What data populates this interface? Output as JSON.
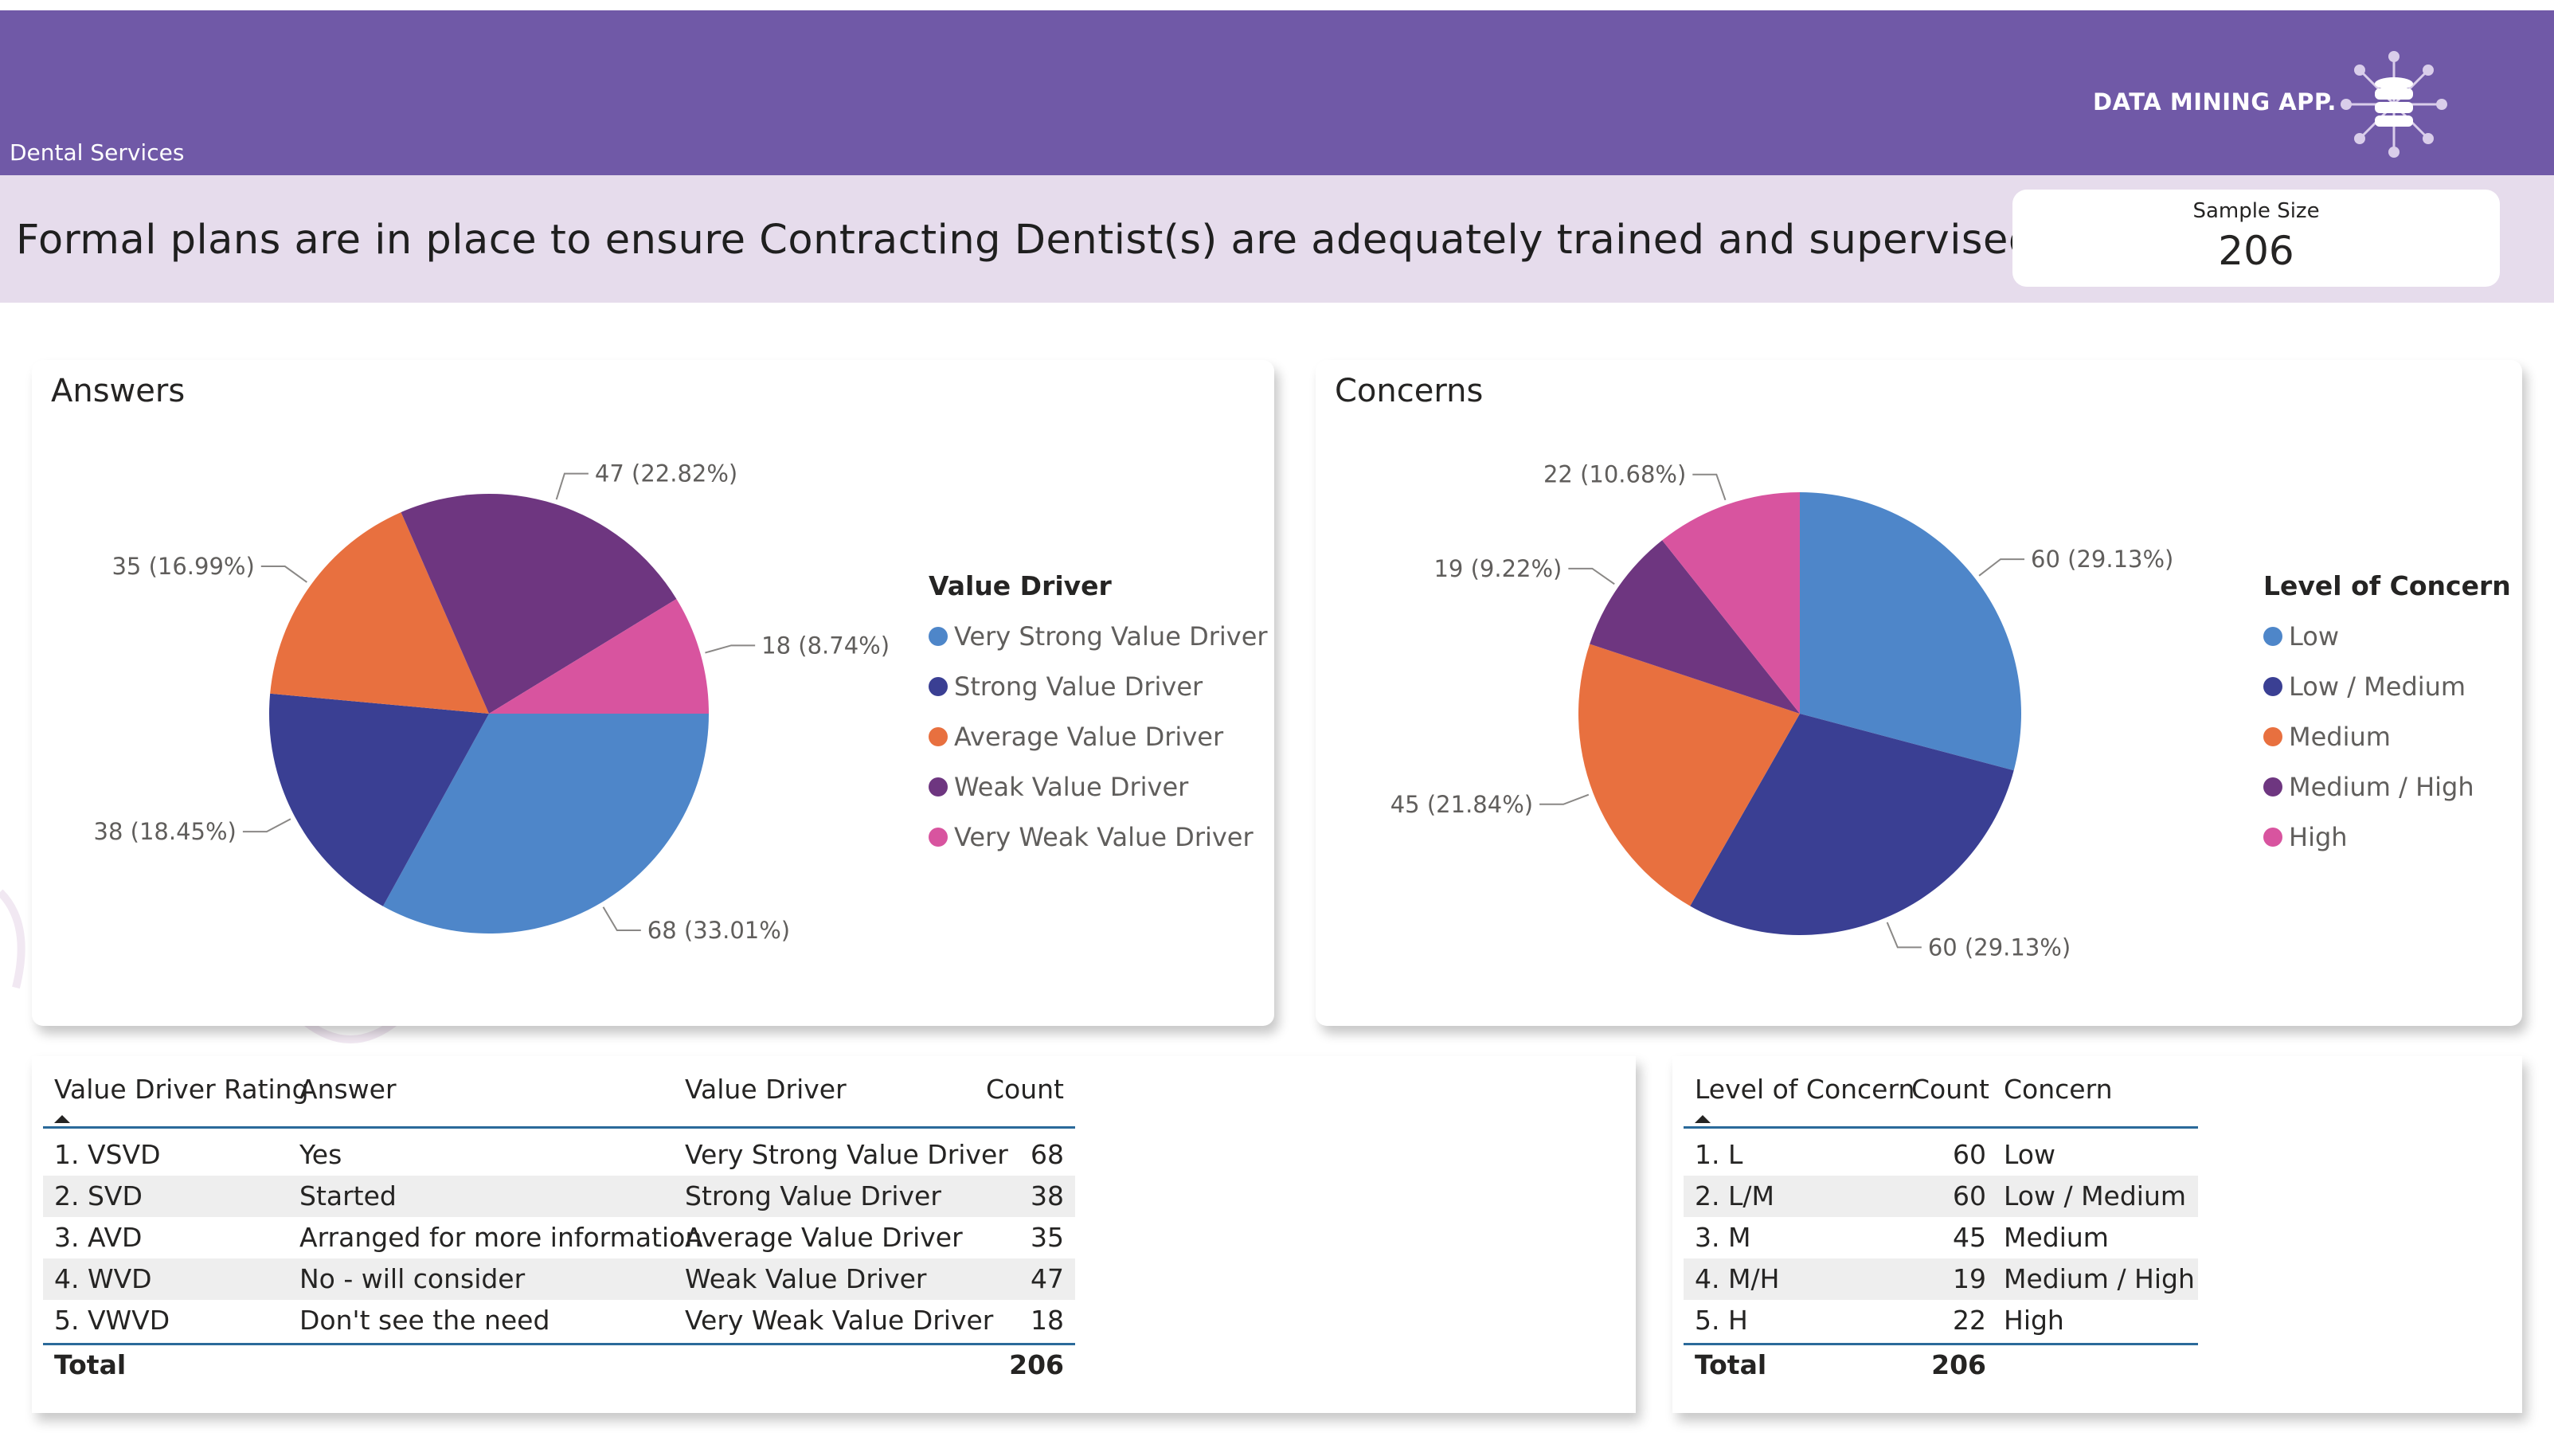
{
  "header": {
    "section": "Dental Services",
    "brand": "DATA MINING APP.",
    "question": "Formal plans are in place to ensure Contracting Dentist(s) are adequately trained and supervised/me...",
    "sample_label": "Sample Size",
    "sample_value": "206"
  },
  "colors": {
    "header": "#7059a7",
    "question_bar": "#e6dcec",
    "table_line": "#2b6a9a"
  },
  "answers_panel": {
    "title": "Answers",
    "legend_title": "Value Driver",
    "legend": [
      "Very Strong Value Driver",
      "Strong Value Driver",
      "Average Value Driver",
      "Weak Value Driver",
      "Very Weak Value Driver"
    ]
  },
  "concerns_panel": {
    "title": "Concerns",
    "legend_title": "Level of Concern",
    "legend": [
      "Low",
      "Low / Medium",
      "Medium",
      "Medium / High",
      "High"
    ]
  },
  "chart_data": [
    {
      "type": "pie",
      "title": "Answers",
      "legend_title": "Value Driver",
      "categories": [
        "Very Strong Value Driver",
        "Strong Value Driver",
        "Average Value Driver",
        "Weak Value Driver",
        "Very Weak Value Driver"
      ],
      "values": [
        68,
        38,
        35,
        47,
        18
      ],
      "labels": [
        "68 (33.01%)",
        "38 (18.45%)",
        "35 (16.99%)",
        "47 (22.82%)",
        "18 (8.74%)"
      ],
      "colors": [
        "#4e86c9",
        "#3a3f93",
        "#e8703f",
        "#6e3680",
        "#d8549f"
      ],
      "start": "3 o'clock, clockwise"
    },
    {
      "type": "pie",
      "title": "Concerns",
      "legend_title": "Level of Concern",
      "categories": [
        "Low",
        "Low / Medium",
        "Medium",
        "Medium / High",
        "High"
      ],
      "values": [
        60,
        60,
        45,
        19,
        22
      ],
      "labels": [
        "60 (29.13%)",
        "60 (29.13%)",
        "45 (21.84%)",
        "19 (9.22%)",
        "22 (10.68%)"
      ],
      "colors": [
        "#4e86c9",
        "#3a3f93",
        "#e8703f",
        "#6e3680",
        "#d8549f"
      ],
      "start": "12 o'clock, clockwise"
    }
  ],
  "answers_table": {
    "headers": [
      "Value Driver Rating",
      "Answer",
      "Value Driver",
      "Count"
    ],
    "rows": [
      [
        "1. VSVD",
        "Yes",
        "Very Strong Value Driver",
        "68"
      ],
      [
        "2. SVD",
        "Started",
        "Strong Value Driver",
        "38"
      ],
      [
        "3. AVD",
        "Arranged for more information",
        "Average Value Driver",
        "35"
      ],
      [
        "4. WVD",
        "No - will consider",
        "Weak Value Driver",
        "47"
      ],
      [
        "5. VWVD",
        "Don't see the need",
        "Very Weak Value Driver",
        "18"
      ]
    ],
    "total_label": "Total",
    "total_value": "206"
  },
  "concerns_table": {
    "headers": [
      "Level of Concern",
      "Count",
      "Concern"
    ],
    "rows": [
      [
        "1. L",
        "60",
        "Low"
      ],
      [
        "2. L/M",
        "60",
        "Low / Medium"
      ],
      [
        "3. M",
        "45",
        "Medium"
      ],
      [
        "4. M/H",
        "19",
        "Medium / High"
      ],
      [
        "5. H",
        "22",
        "High"
      ]
    ],
    "total_label": "Total",
    "total_value": "206"
  }
}
